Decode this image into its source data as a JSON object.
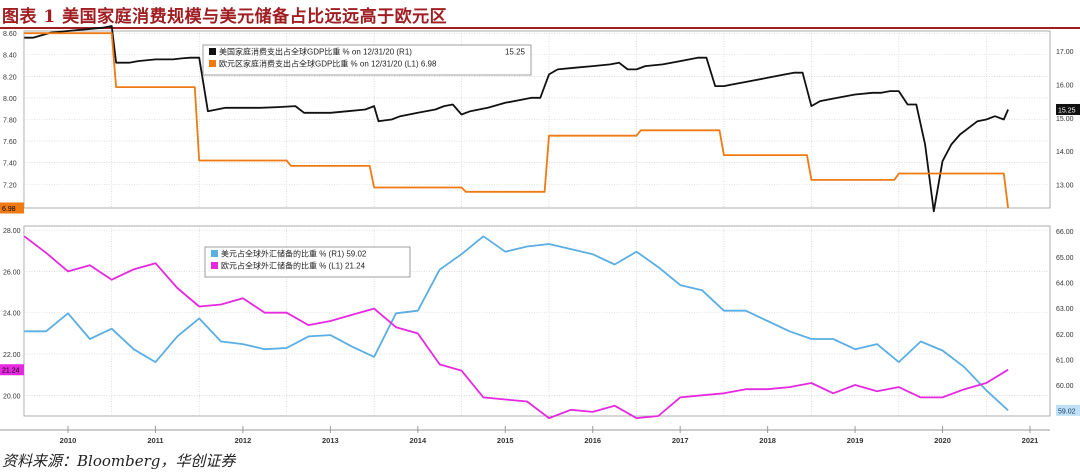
{
  "title": "图表 1  美国家庭消费规模与美元储备占比远远高于欧元区",
  "source": "资料来源：Bloomberg，华创证券",
  "colors": {
    "us_consumption": "#111111",
    "eu_consumption": "#f07a12",
    "usd_reserve": "#5aaee3",
    "eur_reserve": "#e629e0",
    "grid": "#c8c8c8",
    "title_red": "#a01e22"
  },
  "chart_data": [
    {
      "type": "line",
      "panel": "top",
      "ylim_left": [
        6.98,
        8.62
      ],
      "ylim_right": [
        12.3,
        17.6
      ],
      "yticks_left": [
        "8.60",
        "8.40",
        "8.20",
        "8.00",
        "7.80",
        "7.60",
        "7.40",
        "7.20"
      ],
      "yticks_right": [
        "17.00",
        "16.00",
        "15.00",
        "14.00",
        "13.00"
      ],
      "legend_position": "top-left",
      "grid": true,
      "series": [
        {
          "name": "美国家庭消费支出占全球GDP比重 % on 12/31/20 (R1)",
          "last_value": "15.25",
          "axis": "right",
          "x": [
            2009.5,
            2009.6,
            2009.8,
            2010.0,
            2010.2,
            2010.4,
            2010.5,
            2010.55,
            2010.7,
            2010.8,
            2011.0,
            2011.2,
            2011.3,
            2011.4,
            2011.5,
            2011.6,
            2011.8,
            2012.0,
            2012.2,
            2012.4,
            2012.6,
            2012.7,
            2012.9,
            2013.0,
            2013.2,
            2013.4,
            2013.5,
            2013.55,
            2013.7,
            2013.8,
            2014.0,
            2014.2,
            2014.3,
            2014.4,
            2014.5,
            2014.6,
            2014.8,
            2015.0,
            2015.2,
            2015.3,
            2015.4,
            2015.5,
            2015.6,
            2015.8,
            2016.0,
            2016.2,
            2016.3,
            2016.4,
            2016.5,
            2016.6,
            2016.8,
            2017.0,
            2017.2,
            2017.3,
            2017.4,
            2017.5,
            2017.6,
            2017.8,
            2018.0,
            2018.2,
            2018.3,
            2018.4,
            2018.5,
            2018.6,
            2018.8,
            2019.0,
            2019.2,
            2019.3,
            2019.4,
            2019.5,
            2019.6,
            2019.7,
            2019.8,
            2019.9,
            2020.0,
            2020.1,
            2020.2,
            2020.3,
            2020.4,
            2020.5,
            2020.6,
            2020.7,
            2020.75
          ],
          "y": [
            17.4,
            17.4,
            17.55,
            17.6,
            17.65,
            17.7,
            17.75,
            16.65,
            16.65,
            16.7,
            16.75,
            16.75,
            16.78,
            16.8,
            16.8,
            15.2,
            15.3,
            15.3,
            15.3,
            15.32,
            15.35,
            15.15,
            15.15,
            15.15,
            15.2,
            15.25,
            15.35,
            14.9,
            14.95,
            15.05,
            15.15,
            15.25,
            15.35,
            15.4,
            15.1,
            15.2,
            15.3,
            15.45,
            15.55,
            15.6,
            15.6,
            16.3,
            16.45,
            16.5,
            16.55,
            16.6,
            16.65,
            16.45,
            16.45,
            16.55,
            16.6,
            16.7,
            16.8,
            16.8,
            15.95,
            15.95,
            16.0,
            16.1,
            16.2,
            16.3,
            16.35,
            16.35,
            15.35,
            15.5,
            15.6,
            15.7,
            15.75,
            15.75,
            15.8,
            15.8,
            15.4,
            15.4,
            14.2,
            12.2,
            13.7,
            14.2,
            14.5,
            14.7,
            14.9,
            14.95,
            15.05,
            14.95,
            15.25
          ]
        },
        {
          "name": "欧元区家庭消费支出占全球GDP比重 % on 12/31/20 (L1) 6.98",
          "last_value": "6.98",
          "axis": "left",
          "x": [
            2009.5,
            2010.5,
            2010.55,
            2011.45,
            2011.5,
            2012.5,
            2012.55,
            2013.45,
            2013.5,
            2014.5,
            2014.55,
            2015.45,
            2015.5,
            2016.5,
            2016.55,
            2017.45,
            2017.5,
            2018.45,
            2018.5,
            2019.45,
            2019.5,
            2020.45,
            2020.5,
            2020.7,
            2020.75
          ],
          "y": [
            8.6,
            8.6,
            8.1,
            8.1,
            7.42,
            7.42,
            7.37,
            7.37,
            7.17,
            7.17,
            7.13,
            7.13,
            7.65,
            7.65,
            7.7,
            7.7,
            7.47,
            7.47,
            7.24,
            7.24,
            7.3,
            7.3,
            7.3,
            7.3,
            6.98
          ]
        }
      ]
    },
    {
      "type": "line",
      "panel": "bottom",
      "ylim_left": [
        19.0,
        28.2
      ],
      "ylim_right": [
        58.8,
        66.2
      ],
      "yticks_left": [
        "28.00",
        "26.00",
        "24.00",
        "22.00",
        "20.00"
      ],
      "yticks_right": [
        "66.00",
        "65.00",
        "64.00",
        "63.00",
        "62.00",
        "61.00",
        "60.00"
      ],
      "legend_position": "top-left",
      "grid": true,
      "series": [
        {
          "name": "美元占全球外汇储备的比重 % (R1) 59.02",
          "last_value": "59.02",
          "axis": "right",
          "x": [
            2009.5,
            2009.75,
            2010.0,
            2010.25,
            2010.5,
            2010.75,
            2011.0,
            2011.25,
            2011.5,
            2011.75,
            2012.0,
            2012.25,
            2012.5,
            2012.75,
            2013.0,
            2013.25,
            2013.5,
            2013.75,
            2014.0,
            2014.25,
            2014.5,
            2014.75,
            2015.0,
            2015.25,
            2015.5,
            2015.75,
            2016.0,
            2016.25,
            2016.5,
            2016.75,
            2017.0,
            2017.25,
            2017.5,
            2017.75,
            2018.0,
            2018.25,
            2018.5,
            2018.75,
            2019.0,
            2019.25,
            2019.5,
            2019.75,
            2020.0,
            2020.25,
            2020.5,
            2020.75
          ],
          "y": [
            62.1,
            62.1,
            62.8,
            61.8,
            62.2,
            61.4,
            60.9,
            61.9,
            62.6,
            61.7,
            61.6,
            61.4,
            61.45,
            61.9,
            61.95,
            61.5,
            61.1,
            62.8,
            62.9,
            64.5,
            65.1,
            65.8,
            65.2,
            65.4,
            65.5,
            65.3,
            65.1,
            64.7,
            65.2,
            64.6,
            63.9,
            63.7,
            62.9,
            62.9,
            62.5,
            62.1,
            61.8,
            61.8,
            61.4,
            61.6,
            60.9,
            61.7,
            61.35,
            60.7,
            59.8,
            59.02
          ]
        },
        {
          "name": "欧元占全球外汇储备的比重 % (L1) 21.24",
          "last_value": "21.24",
          "axis": "left",
          "x": [
            2009.5,
            2009.75,
            2010.0,
            2010.25,
            2010.5,
            2010.75,
            2011.0,
            2011.25,
            2011.5,
            2011.75,
            2012.0,
            2012.25,
            2012.5,
            2012.75,
            2013.0,
            2013.25,
            2013.5,
            2013.75,
            2014.0,
            2014.25,
            2014.5,
            2014.75,
            2015.0,
            2015.25,
            2015.5,
            2015.75,
            2016.0,
            2016.25,
            2016.5,
            2016.75,
            2017.0,
            2017.25,
            2017.5,
            2017.75,
            2018.0,
            2018.25,
            2018.5,
            2018.75,
            2019.0,
            2019.25,
            2019.5,
            2019.75,
            2020.0,
            2020.25,
            2020.5,
            2020.75
          ],
          "y": [
            27.7,
            26.9,
            26.0,
            26.3,
            25.6,
            26.1,
            26.4,
            25.2,
            24.3,
            24.4,
            24.7,
            24.0,
            24.0,
            23.4,
            23.6,
            23.9,
            24.2,
            23.3,
            23.0,
            21.5,
            21.2,
            19.9,
            19.8,
            19.7,
            18.9,
            19.3,
            19.2,
            19.5,
            18.9,
            19.0,
            19.9,
            20.0,
            20.1,
            20.3,
            20.3,
            20.4,
            20.6,
            20.1,
            20.5,
            20.2,
            20.4,
            19.9,
            19.9,
            20.3,
            20.6,
            21.24
          ]
        }
      ]
    }
  ],
  "x_axis": {
    "ticks": [
      "2010",
      "2011",
      "2012",
      "2013",
      "2014",
      "2015",
      "2016",
      "2017",
      "2018",
      "2019",
      "2020",
      "2021"
    ]
  }
}
